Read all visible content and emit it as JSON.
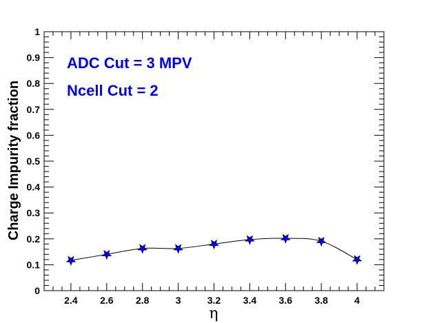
{
  "chart_data": {
    "type": "line",
    "title": "",
    "xlabel": "η",
    "ylabel": "Charge Impurity fraction",
    "xlim": [
      2.25,
      4.15
    ],
    "ylim": [
      0,
      1
    ],
    "x_ticks": [
      "2.4",
      "2.6",
      "2.8",
      "3",
      "3.2",
      "3.4",
      "3.6",
      "3.8",
      "4"
    ],
    "y_ticks": [
      "0",
      "0.1",
      "0.2",
      "0.3",
      "0.4",
      "0.5",
      "0.6",
      "0.7",
      "0.8",
      "0.9",
      "1"
    ],
    "grid": false,
    "annotations": [
      "ADC Cut = 3 MPV",
      "Ncell Cut = 2"
    ],
    "annotation_color": "#0000ff",
    "marker_color": "#0000ff",
    "line_color": "#000000",
    "series": [
      {
        "x": [
          2.4,
          2.6,
          2.8,
          3.0,
          3.2,
          3.4,
          3.6,
          3.8,
          4.0
        ],
        "y": [
          0.117,
          0.14,
          0.163,
          0.163,
          0.18,
          0.197,
          0.202,
          0.191,
          0.12
        ]
      }
    ]
  }
}
